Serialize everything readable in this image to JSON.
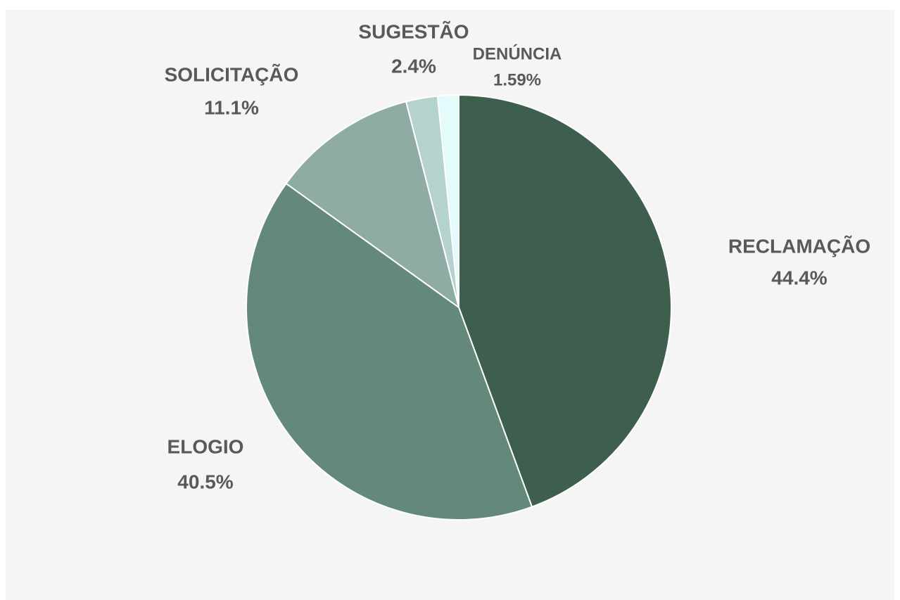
{
  "chart_data": {
    "type": "pie",
    "categories": [
      "RECLAMAÇÃO",
      "ELOGIO",
      "SOLICITAÇÃO",
      "SUGESTÃO",
      "DENÚNCIA"
    ],
    "values": [
      44.4,
      40.5,
      11.1,
      2.4,
      1.59
    ],
    "value_labels": [
      "44.4%",
      "40.5%",
      "11.1%",
      "2.4%",
      "1.59%"
    ],
    "colors": [
      "#3e5f4d",
      "#648879",
      "#8eaca3",
      "#b4d2ce",
      "#e4fbfb"
    ]
  }
}
